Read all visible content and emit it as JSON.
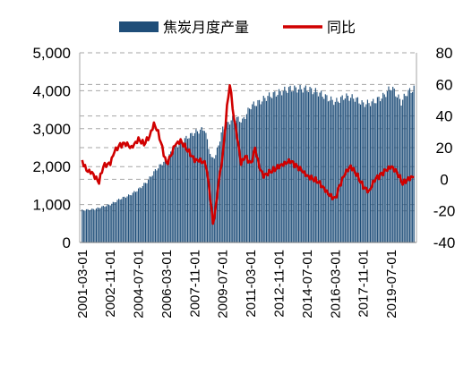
{
  "chart_data": {
    "type": "bar",
    "legend_position": "top",
    "grid": true,
    "bar_color": "#1f4e79",
    "line_color": "#d00000",
    "grid_color": "#a6a6a6",
    "series": [
      {
        "name": "焦炭月度产量",
        "type": "bar",
        "axis": "left"
      },
      {
        "name": "同比",
        "type": "line",
        "axis": "right"
      }
    ],
    "left_axis": {
      "ylim": [
        0,
        5000
      ],
      "ticks": [
        "0",
        "1,000",
        "2,000",
        "3,000",
        "4,000",
        "5,000"
      ]
    },
    "right_axis": {
      "ylim": [
        -40,
        80
      ],
      "ticks": [
        "-40",
        "-20",
        "0",
        "20",
        "40",
        "60",
        "80"
      ]
    },
    "x_tick_labels": [
      "2001-03-01",
      "2002-11-01",
      "2004-07-01",
      "2006-03-01",
      "2007-11-01",
      "2009-07-01",
      "2011-03-01",
      "2012-11-01",
      "2014-07-01",
      "2016-03-01",
      "2017-11-01",
      "2019-07-01"
    ],
    "x_range": [
      "2001-03",
      "2020-11"
    ],
    "bar_anchors": [
      [
        "2001-03",
        850
      ],
      [
        "2001-12",
        880
      ],
      [
        "2002-06",
        950
      ],
      [
        "2002-11",
        1000
      ],
      [
        "2003-06",
        1150
      ],
      [
        "2004-01",
        1250
      ],
      [
        "2004-07",
        1400
      ],
      [
        "2005-01",
        1600
      ],
      [
        "2005-07",
        1900
      ],
      [
        "2006-03",
        2200
      ],
      [
        "2006-09",
        2500
      ],
      [
        "2007-03",
        2700
      ],
      [
        "2007-11",
        2900
      ],
      [
        "2008-06",
        3000
      ],
      [
        "2008-11",
        2200
      ],
      [
        "2009-02",
        2300
      ],
      [
        "2009-07",
        3000
      ],
      [
        "2010-03",
        3300
      ],
      [
        "2010-09",
        3200
      ],
      [
        "2011-03",
        3600
      ],
      [
        "2011-09",
        3700
      ],
      [
        "2012-03",
        3850
      ],
      [
        "2012-11",
        3950
      ],
      [
        "2013-06",
        4050
      ],
      [
        "2014-07",
        4050
      ],
      [
        "2015-03",
        3950
      ],
      [
        "2015-10",
        3800
      ],
      [
        "2016-03",
        3700
      ],
      [
        "2016-10",
        3850
      ],
      [
        "2017-05",
        3800
      ],
      [
        "2017-11",
        3650
      ],
      [
        "2018-06",
        3700
      ],
      [
        "2019-01",
        3850
      ],
      [
        "2019-07",
        4100
      ],
      [
        "2020-02",
        3700
      ],
      [
        "2020-06",
        3950
      ],
      [
        "2020-11",
        4050
      ]
    ],
    "line_anchors": [
      [
        "2001-03",
        12
      ],
      [
        "2001-06",
        6
      ],
      [
        "2001-10",
        4
      ],
      [
        "2002-01",
        0
      ],
      [
        "2002-03",
        -2
      ],
      [
        "2002-06",
        8
      ],
      [
        "2002-11",
        10
      ],
      [
        "2003-02",
        18
      ],
      [
        "2003-06",
        22
      ],
      [
        "2003-10",
        23
      ],
      [
        "2004-02",
        20
      ],
      [
        "2004-07",
        25
      ],
      [
        "2004-11",
        22
      ],
      [
        "2005-03",
        27
      ],
      [
        "2005-06",
        35
      ],
      [
        "2005-09",
        30
      ],
      [
        "2005-12",
        20
      ],
      [
        "2006-03",
        10
      ],
      [
        "2006-06",
        15
      ],
      [
        "2006-09",
        22
      ],
      [
        "2007-01",
        24
      ],
      [
        "2007-06",
        18
      ],
      [
        "2007-11",
        12
      ],
      [
        "2008-03",
        12
      ],
      [
        "2008-07",
        10
      ],
      [
        "2008-10",
        -10
      ],
      [
        "2008-12",
        -28
      ],
      [
        "2009-02",
        -18
      ],
      [
        "2009-04",
        -2
      ],
      [
        "2009-07",
        15
      ],
      [
        "2009-10",
        45
      ],
      [
        "2009-12",
        60
      ],
      [
        "2010-03",
        38
      ],
      [
        "2010-05",
        28
      ],
      [
        "2010-08",
        10
      ],
      [
        "2010-11",
        15
      ],
      [
        "2011-03",
        10
      ],
      [
        "2011-06",
        20
      ],
      [
        "2011-09",
        8
      ],
      [
        "2011-12",
        2
      ],
      [
        "2012-04",
        4
      ],
      [
        "2012-08",
        6
      ],
      [
        "2012-11",
        8
      ],
      [
        "2013-03",
        10
      ],
      [
        "2013-07",
        12
      ],
      [
        "2013-11",
        9
      ],
      [
        "2014-03",
        6
      ],
      [
        "2014-07",
        2
      ],
      [
        "2014-11",
        0
      ],
      [
        "2015-03",
        -2
      ],
      [
        "2015-07",
        -6
      ],
      [
        "2015-11",
        -10
      ],
      [
        "2016-03",
        -12
      ],
      [
        "2016-06",
        -4
      ],
      [
        "2016-10",
        4
      ],
      [
        "2017-02",
        8
      ],
      [
        "2017-06",
        3
      ],
      [
        "2017-11",
        -5
      ],
      [
        "2018-03",
        -8
      ],
      [
        "2018-07",
        0
      ],
      [
        "2018-11",
        3
      ],
      [
        "2019-03",
        6
      ],
      [
        "2019-07",
        8
      ],
      [
        "2019-11",
        4
      ],
      [
        "2020-03",
        -3
      ],
      [
        "2020-07",
        0
      ],
      [
        "2020-11",
        2
      ]
    ]
  }
}
